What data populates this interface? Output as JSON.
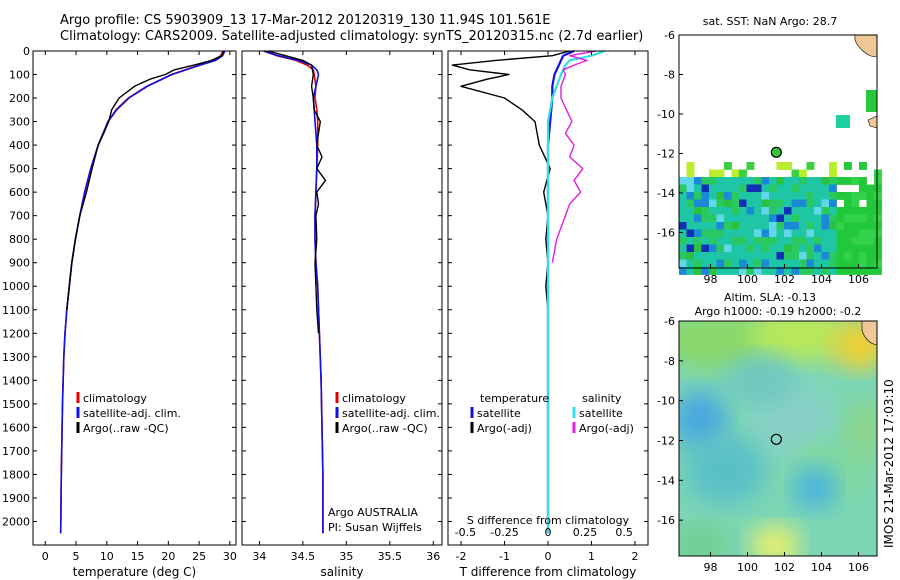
{
  "titles": {
    "line1": "Argo profile: CS 5903909_13 17-Mar-2012 20120319_130 11.94S 101.561E",
    "line2": "Climatology: CARS2009. Satellite-adjusted climatology: synTS_20120315.nc (2.7d earlier)"
  },
  "colors": {
    "climatology": "#e00000",
    "satellite": "#1010e0",
    "argo": "#000000",
    "sal_satellite": "#30e0e8",
    "sal_argo": "#e020e0"
  },
  "chart_data": [
    {
      "type": "line",
      "id": "temperature",
      "xlabel": "temperature (deg C)",
      "ylabel": "",
      "xlim": [
        -2,
        31
      ],
      "ylim": [
        2100,
        0
      ],
      "xticks": [
        0,
        5,
        10,
        15,
        20,
        25,
        30
      ],
      "yticks": [
        0,
        100,
        200,
        300,
        400,
        500,
        600,
        700,
        800,
        900,
        1000,
        1100,
        1200,
        1300,
        1400,
        1500,
        1600,
        1700,
        1800,
        1900,
        2000
      ],
      "legend": [
        "climatology",
        "satellite-adj. clim.",
        "Argo(..raw -QC)"
      ],
      "series": [
        {
          "name": "climatology",
          "x": [
            28.9,
            28.5,
            27.5,
            25.0,
            20.5,
            16.5,
            13.5,
            11.5,
            10.2,
            8.6,
            7.4,
            6.4,
            5.6,
            4.9,
            4.3,
            3.9,
            3.5,
            3.2,
            3.0,
            2.8,
            2.6,
            2.5
          ],
          "y": [
            0,
            20,
            40,
            60,
            100,
            150,
            200,
            250,
            300,
            400,
            500,
            600,
            700,
            800,
            900,
            1000,
            1100,
            1200,
            1300,
            1500,
            1800,
            2050
          ]
        },
        {
          "name": "satellite-adj. clim.",
          "x": [
            29.2,
            28.8,
            27.7,
            25.2,
            20.6,
            16.6,
            13.6,
            11.6,
            10.2,
            8.6,
            7.4,
            6.4,
            5.6,
            4.9,
            4.3,
            3.9,
            3.5,
            3.2,
            3.0,
            2.8,
            2.6,
            2.5
          ],
          "y": [
            0,
            20,
            40,
            60,
            100,
            150,
            200,
            250,
            300,
            400,
            500,
            600,
            700,
            800,
            900,
            1000,
            1100,
            1200,
            1300,
            1500,
            1800,
            2050
          ]
        },
        {
          "name": "Argo(..raw -QC)",
          "x": [
            29.0,
            28.7,
            27.0,
            24.2,
            21.0,
            19.5,
            17.0,
            14.5,
            12.0,
            10.8,
            10.3,
            9.5,
            8.6,
            7.6,
            6.7,
            5.6,
            4.9,
            4.3,
            3.9,
            3.5
          ],
          "y": [
            0,
            20,
            40,
            60,
            80,
            100,
            120,
            150,
            200,
            250,
            300,
            350,
            400,
            500,
            600,
            700,
            800,
            900,
            1000,
            1100
          ]
        }
      ]
    },
    {
      "type": "line",
      "id": "salinity",
      "xlabel": "salinity",
      "ylabel": "",
      "xlim": [
        33.8,
        36.1
      ],
      "ylim": [
        2100,
        0
      ],
      "xticks": [
        34,
        34.5,
        35,
        35.5,
        36
      ],
      "yticks": [
        0,
        100,
        200,
        300,
        400,
        500,
        600,
        700,
        800,
        900,
        1000,
        1100,
        1200,
        1300,
        1400,
        1500,
        1600,
        1700,
        1800,
        1900,
        2000
      ],
      "legend": [
        "climatology",
        "satellite-adj. clim.",
        "Argo(..raw -QC)"
      ],
      "annotation": [
        "Argo AUSTRALIA",
        "PI: Susan Wijffels"
      ],
      "series": [
        {
          "name": "climatology",
          "x": [
            34.05,
            34.2,
            34.42,
            34.55,
            34.62,
            34.63,
            34.65,
            34.64,
            34.66,
            34.67,
            34.67,
            34.66,
            34.65,
            34.64,
            34.64,
            34.65,
            34.67,
            34.69,
            34.71,
            34.72,
            34.73,
            34.73
          ],
          "y": [
            0,
            20,
            40,
            60,
            80,
            100,
            150,
            200,
            250,
            300,
            400,
            500,
            600,
            700,
            800,
            900,
            1000,
            1200,
            1400,
            1600,
            1800,
            2050
          ]
        },
        {
          "name": "satellite-adj. clim.",
          "x": [
            34.05,
            34.22,
            34.45,
            34.6,
            34.66,
            34.68,
            34.65,
            34.62,
            34.63,
            34.64,
            34.66,
            34.66,
            34.65,
            34.64,
            34.64,
            34.65,
            34.67,
            34.69,
            34.71,
            34.72,
            34.73,
            34.73
          ],
          "y": [
            0,
            20,
            40,
            60,
            80,
            100,
            150,
            200,
            250,
            300,
            400,
            500,
            600,
            700,
            800,
            900,
            1000,
            1200,
            1400,
            1600,
            1800,
            2050
          ]
        },
        {
          "name": "Argo(..raw -QC)",
          "x": [
            34.1,
            34.3,
            34.5,
            34.6,
            34.62,
            34.6,
            34.62,
            34.63,
            34.7,
            34.68,
            34.66,
            34.72,
            34.66,
            34.76,
            34.66,
            34.68,
            34.65,
            34.66,
            34.64,
            34.65,
            34.66,
            34.68
          ],
          "y": [
            0,
            20,
            40,
            60,
            100,
            150,
            200,
            250,
            300,
            350,
            400,
            450,
            500,
            550,
            600,
            650,
            700,
            800,
            900,
            1000,
            1100,
            1200
          ]
        }
      ]
    },
    {
      "type": "line",
      "id": "difference",
      "xlabel": "T difference from climatology",
      "xlabel_top": "S difference from climatology",
      "xlim": [
        -2.3,
        2.3
      ],
      "ylim": [
        2100,
        0
      ],
      "xticks": [
        -2,
        -1,
        0,
        1,
        2
      ],
      "xticks_s": [
        -0.5,
        -0.25,
        0,
        0.25,
        0.5
      ],
      "yticks": [
        0,
        100,
        200,
        300,
        400,
        500,
        600,
        700,
        800,
        900,
        1000,
        1100,
        1200,
        1300,
        1400,
        1500,
        1600,
        1700,
        1800,
        1900,
        2000
      ],
      "legend_temperature": [
        "temperature",
        "satellite",
        "Argo(-adj)"
      ],
      "legend_salinity": [
        "salinity",
        "satellite",
        "Argo(-adj)"
      ],
      "series": [
        {
          "name": "temperature satellite",
          "x": [
            0.6,
            0.35,
            0.3,
            0.25,
            0.15,
            0.1,
            0.1,
            0.05,
            0.0,
            0.0,
            0.0,
            0.0,
            0.0,
            0.0
          ],
          "y": [
            0,
            20,
            40,
            60,
            100,
            150,
            200,
            300,
            400,
            600,
            800,
            1200,
            1600,
            2050
          ]
        },
        {
          "name": "temperature Argo(-adj)",
          "x": [
            0.5,
            0.1,
            -1.2,
            -2.2,
            -1.8,
            -0.9,
            -1.4,
            -2.0,
            -1.0,
            -0.6,
            -0.3,
            -0.2,
            0.05,
            -0.1,
            0.0,
            -0.05,
            0.0,
            -0.05,
            0.0
          ],
          "y": [
            0,
            20,
            40,
            60,
            80,
            100,
            120,
            150,
            200,
            250,
            300,
            400,
            500,
            600,
            700,
            800,
            900,
            1000,
            1100
          ]
        },
        {
          "name": "salinity satellite",
          "x": [
            1.3,
            1.0,
            0.5,
            0.4,
            0.3,
            0.1,
            0.0,
            0.0,
            0.0,
            0.0,
            0.0,
            0.0,
            0.0
          ],
          "y": [
            0,
            20,
            40,
            60,
            100,
            200,
            300,
            400,
            600,
            900,
            1200,
            1600,
            2050
          ]
        },
        {
          "name": "salinity Argo(-adj)",
          "x": [
            1.1,
            0.5,
            0.9,
            0.6,
            0.35,
            0.4,
            0.3,
            0.3,
            0.55,
            0.4,
            0.6,
            0.5,
            0.8,
            0.6,
            0.75,
            0.5,
            0.4,
            0.2,
            0.1
          ],
          "y": [
            0,
            20,
            40,
            60,
            80,
            100,
            150,
            200,
            300,
            350,
            400,
            450,
            500,
            550,
            600,
            650,
            700,
            800,
            900
          ]
        }
      ]
    },
    {
      "type": "heatmap",
      "id": "sst_map",
      "title": "sat. SST: NaN Argo: 28.7",
      "xticks": [
        98,
        100,
        102,
        104,
        106
      ],
      "yticks": [
        -6,
        -8,
        -10,
        -12,
        -14,
        -16
      ],
      "xlim": [
        96.3,
        107.0
      ],
      "ylim": [
        -17.8,
        -6.0
      ],
      "marker": {
        "lon": 101.56,
        "lat": -11.94
      }
    },
    {
      "type": "heatmap",
      "id": "sla_map",
      "title": "Altim. SLA: -0.13",
      "subtitle": "Argo h1000: -0.19 h2000: -0.2",
      "xticks": [
        98,
        100,
        102,
        104,
        106
      ],
      "yticks": [
        -6,
        -8,
        -10,
        -12,
        -14,
        -16
      ],
      "xlim": [
        96.3,
        107.0
      ],
      "ylim": [
        -17.8,
        -6.0
      ],
      "marker": {
        "lon": 101.56,
        "lat": -11.94
      }
    }
  ],
  "side_stamp": "IMOS 21-Mar-2012 17:03:10"
}
